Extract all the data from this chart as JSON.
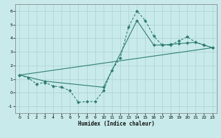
{
  "xlabel": "Humidex (Indice chaleur)",
  "background_color": "#c8eaea",
  "grid_color": "#b0d4d4",
  "line_color": "#2e7d6e",
  "xlim": [
    -0.5,
    23.5
  ],
  "ylim": [
    -1.5,
    6.5
  ],
  "xticks": [
    0,
    1,
    2,
    3,
    4,
    5,
    6,
    7,
    8,
    9,
    10,
    11,
    12,
    13,
    14,
    15,
    16,
    17,
    18,
    19,
    20,
    21,
    22,
    23
  ],
  "yticks": [
    -1,
    0,
    1,
    2,
    3,
    4,
    5,
    6
  ],
  "line1_x": [
    0,
    1,
    2,
    3,
    4,
    5,
    6,
    7,
    8,
    9,
    10,
    11,
    12,
    13,
    14,
    15,
    16,
    17,
    18,
    19,
    20,
    21,
    22,
    23
  ],
  "line1_y": [
    1.3,
    1.1,
    0.65,
    0.75,
    0.5,
    0.4,
    0.15,
    -0.7,
    -0.65,
    -0.65,
    0.15,
    1.65,
    2.55,
    4.85,
    6.0,
    5.3,
    4.15,
    3.5,
    3.5,
    3.8,
    4.1,
    3.7,
    3.5,
    3.3
  ],
  "line2_x": [
    0,
    3,
    10,
    14,
    16,
    17,
    18,
    19,
    20,
    21,
    22,
    23
  ],
  "line2_y": [
    1.3,
    0.85,
    0.4,
    5.3,
    3.5,
    3.5,
    3.55,
    3.6,
    3.65,
    3.7,
    3.5,
    3.3
  ],
  "line3_x": [
    0,
    23
  ],
  "line3_y": [
    1.3,
    3.3
  ]
}
